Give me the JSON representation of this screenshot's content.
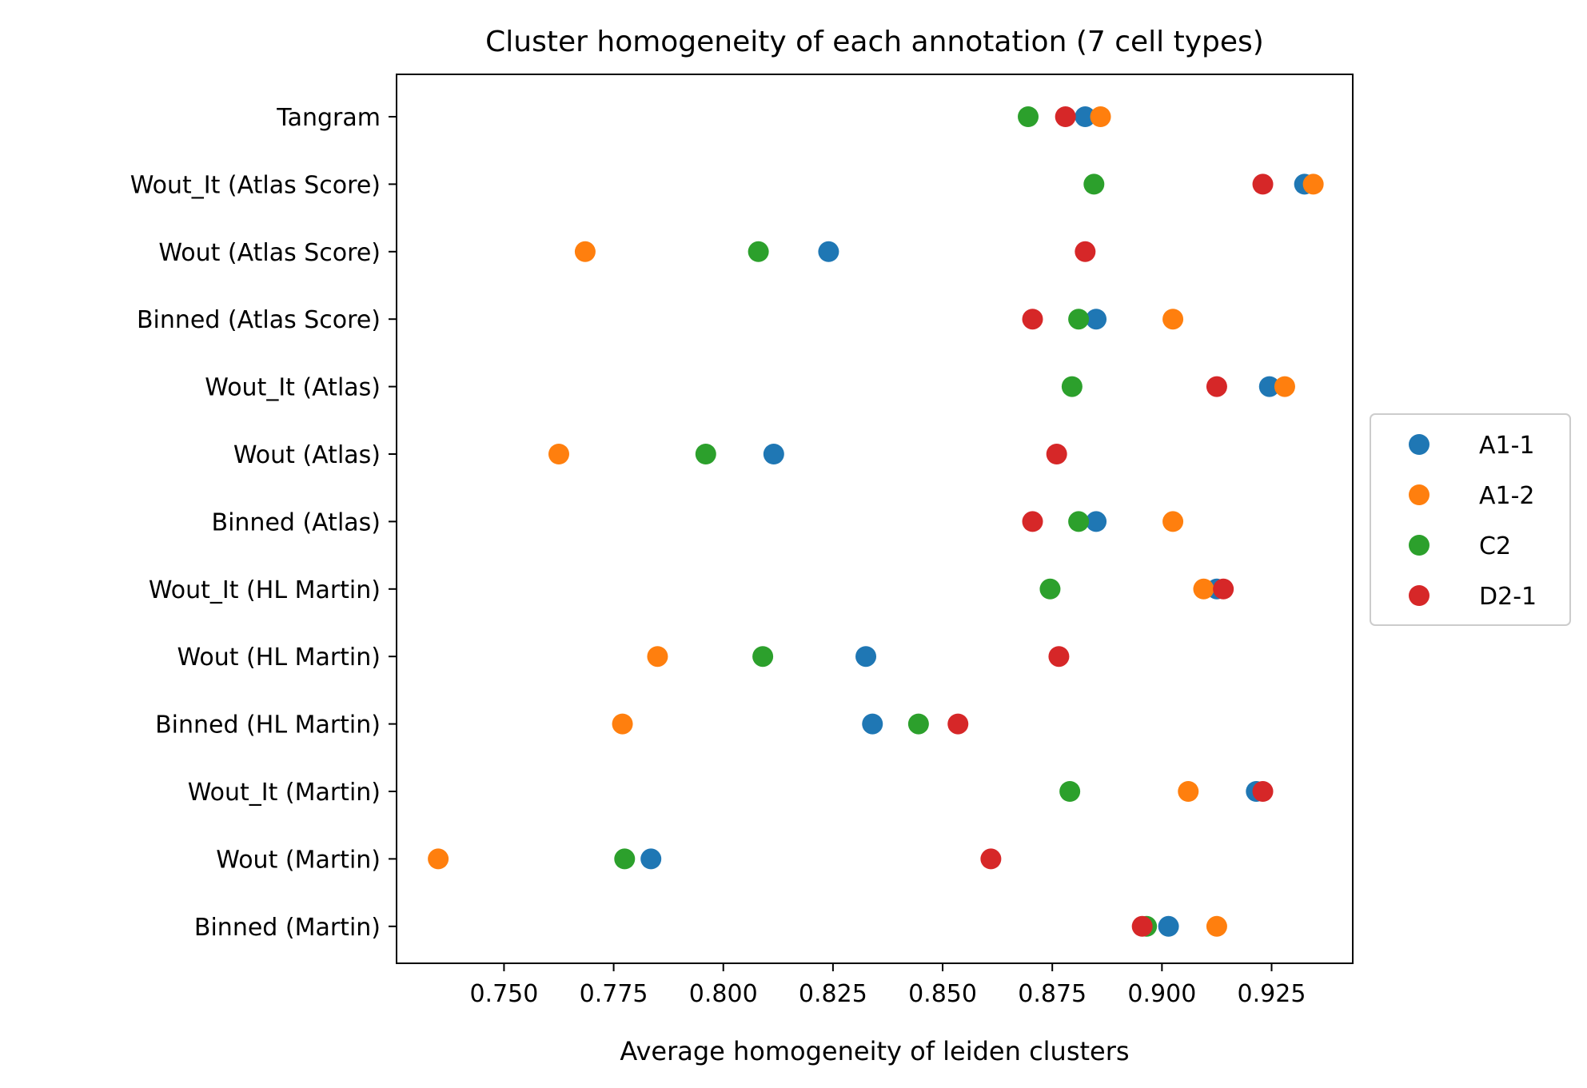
{
  "chart_data": {
    "type": "scatter",
    "title": "Cluster homogeneity of each annotation (7 cell types)",
    "xlabel": "Average homogeneity of leiden clusters",
    "ylabel": "",
    "xlim": [
      0.7255,
      0.9435
    ],
    "xticks": [
      0.75,
      0.775,
      0.8,
      0.825,
      0.85,
      0.875,
      0.9,
      0.925
    ],
    "xtick_labels": [
      "0.750",
      "0.775",
      "0.800",
      "0.825",
      "0.850",
      "0.875",
      "0.900",
      "0.925"
    ],
    "categories": [
      "Tangram",
      "Wout_It (Atlas Score)",
      "Wout (Atlas Score)",
      "Binned (Atlas Score)",
      "Wout_It (Atlas)",
      "Wout (Atlas)",
      "Binned (Atlas)",
      "Wout_It (HL Martin)",
      "Wout (HL Martin)",
      "Binned (HL Martin)",
      "Wout_It (Martin)",
      "Wout (Martin)",
      "Binned (Martin)"
    ],
    "grid": false,
    "legend_position": "center-right",
    "series": [
      {
        "name": "A1-1",
        "color": "#1f77b4",
        "values": [
          0.8825,
          0.9325,
          0.824,
          0.885,
          0.9245,
          0.8115,
          0.885,
          0.9125,
          0.8325,
          0.834,
          0.9215,
          0.7835,
          0.9015
        ]
      },
      {
        "name": "A1-2",
        "color": "#ff7f0e",
        "values": [
          0.886,
          0.9345,
          0.7685,
          0.9025,
          0.928,
          0.7625,
          0.9025,
          0.9095,
          0.785,
          0.777,
          0.906,
          0.735,
          0.9125
        ]
      },
      {
        "name": "C2",
        "color": "#2ca02c",
        "values": [
          0.8695,
          0.8845,
          0.808,
          0.881,
          0.8795,
          0.796,
          0.881,
          0.8745,
          0.809,
          0.8445,
          0.879,
          0.7775,
          0.8965
        ]
      },
      {
        "name": "D2-1",
        "color": "#d62728",
        "values": [
          0.878,
          0.923,
          0.8825,
          0.8705,
          0.9125,
          0.876,
          0.8705,
          0.914,
          0.8765,
          0.8535,
          0.923,
          0.861,
          0.8955
        ]
      }
    ]
  }
}
